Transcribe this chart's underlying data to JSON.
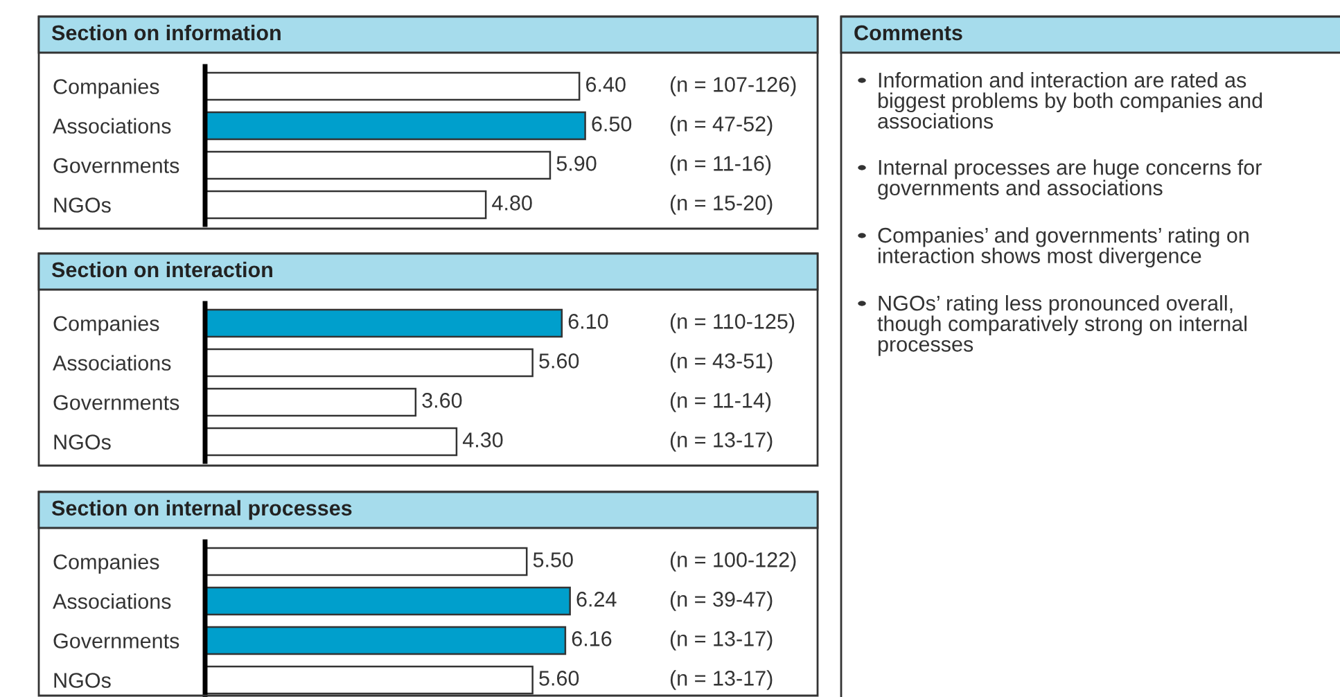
{
  "chart_data": [
    {
      "type": "bar",
      "orientation": "horizontal",
      "title": "Section on information",
      "categories": [
        "Companies",
        "Associations",
        "Governments",
        "NGOs"
      ],
      "values": [
        6.4,
        6.5,
        5.9,
        4.8
      ],
      "value_labels": [
        "6.40",
        "6.50",
        "5.90",
        "4.80"
      ],
      "colors": [
        "#ffffff",
        "#009fcc",
        "#ffffff",
        "#ffffff"
      ],
      "annotations": [
        "(n = 107-126)",
        "(n = 47-52)",
        "(n = 11-16)",
        "(n = 15-20)"
      ]
    },
    {
      "type": "bar",
      "orientation": "horizontal",
      "title": "Section on interaction",
      "categories": [
        "Companies",
        "Associations",
        "Governments",
        "NGOs"
      ],
      "values": [
        6.1,
        5.6,
        3.6,
        4.3
      ],
      "value_labels": [
        "6.10",
        "5.60",
        "3.60",
        "4.30"
      ],
      "colors": [
        "#009fcc",
        "#ffffff",
        "#ffffff",
        "#ffffff"
      ],
      "annotations": [
        "(n = 110-125)",
        "(n = 43-51)",
        "(n = 11-14)",
        "(n = 13-17)"
      ]
    },
    {
      "type": "bar",
      "orientation": "horizontal",
      "title": "Section on internal processes",
      "categories": [
        "Companies",
        "Associations",
        "Governments",
        "NGOs"
      ],
      "values": [
        5.5,
        6.24,
        6.16,
        5.6
      ],
      "value_labels": [
        "5.50",
        "6.24",
        "6.16",
        "5.60"
      ],
      "colors": [
        "#ffffff",
        "#009fcc",
        "#009fcc",
        "#ffffff"
      ],
      "annotations": [
        "(n = 100-122)",
        "(n = 39-47)",
        "(n = 13-17)",
        "(n = 13-17)"
      ]
    },
    {
      "type": "other",
      "title": "Comments",
      "annotations": [
        "Information and interaction are rated as biggest problems by both companies and associations",
        "Internal processes are huge concerns for governments and associations",
        "Companies’ and governments’ rating on interaction shows most divergence",
        "NGOs’ rating less pronounced overall, though comparatively strong on internal processes"
      ]
    }
  ]
}
